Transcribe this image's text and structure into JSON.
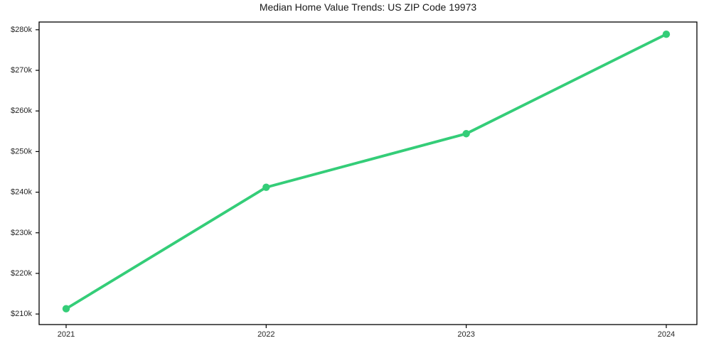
{
  "chart_data": {
    "type": "line",
    "title": "Median Home Value Trends: US ZIP Code 19973",
    "x": [
      2021,
      2022,
      2023,
      2024
    ],
    "x_tick_labels": [
      "2021",
      "2022",
      "2023",
      "2024"
    ],
    "y_ticks": [
      {
        "value": 210,
        "label": "$210k"
      },
      {
        "value": 220,
        "label": "$220k"
      },
      {
        "value": 230,
        "label": "$230k"
      },
      {
        "value": 240,
        "label": "$240k"
      },
      {
        "value": 250,
        "label": "$250k"
      },
      {
        "value": 260,
        "label": "$260k"
      },
      {
        "value": 270,
        "label": "$270k"
      },
      {
        "value": 280,
        "label": "$280k"
      }
    ],
    "series": [
      {
        "name": "median-home-value",
        "values_usd_k": [
          211.3,
          241.2,
          254.4,
          278.9
        ],
        "color": "#34cd78",
        "marker": "circle"
      }
    ],
    "xlabel": "",
    "ylabel": "",
    "xlim": [
      2020.865,
      2024.153
    ],
    "ylim_usd_k": [
      207.4,
      281.9
    ],
    "grid": false,
    "legend": false,
    "axis_color": "#000000",
    "tick_label_color": "#262626",
    "title_color": "#1a1a1a"
  }
}
